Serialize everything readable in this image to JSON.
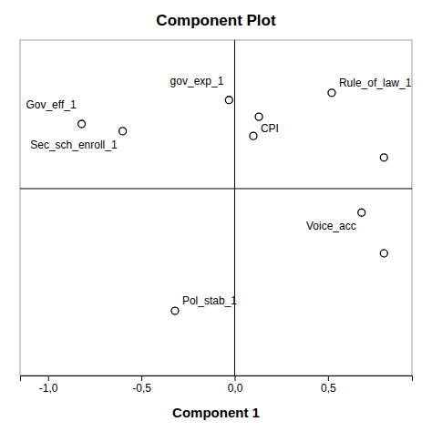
{
  "chart_data": {
    "type": "scatter",
    "title": "Component Plot",
    "x_label": "Component 1",
    "xlim": [
      -1.15,
      0.95
    ],
    "ylim": [
      -0.78,
      0.62
    ],
    "xticks": [
      {
        "value": -1.0,
        "label": "-1,0"
      },
      {
        "value": -0.5,
        "label": "-0,5"
      },
      {
        "value": 0.0,
        "label": "0,0"
      },
      {
        "value": 0.5,
        "label": "0,5"
      }
    ],
    "tick_labels": "x",
    "grid": false,
    "marker": "circle",
    "color": "black",
    "x": [
      -0.82,
      -0.6,
      -0.03,
      0.13,
      0.1,
      0.52,
      0.8,
      0.68,
      0.8,
      -0.32
    ],
    "values": [
      0.27,
      0.24,
      0.37,
      0.3,
      0.22,
      0.4,
      0.13,
      -0.1,
      -0.27,
      -0.51
    ],
    "labels": [
      "Gov_eff_1",
      "Sec_sch_enroll_1",
      "gov_exp_1",
      null,
      "CPI",
      "Rule_of_law_1",
      null,
      "Voice_acc",
      null,
      "Pol_stab_1"
    ]
  }
}
